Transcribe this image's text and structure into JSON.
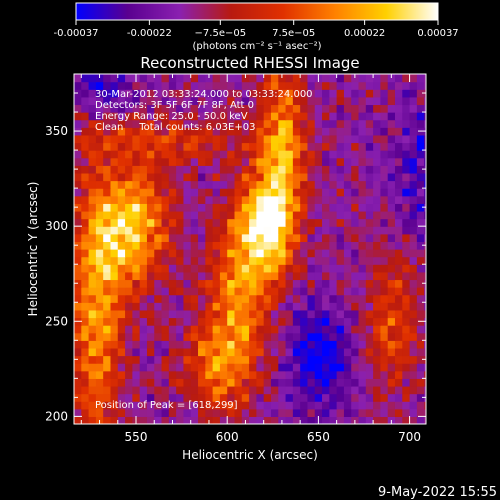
{
  "chart_data": {
    "type": "heatmap",
    "title": "Reconstructed RHESSI Image",
    "xlabel": "Heliocentric X (arcsec)",
    "ylabel": "Heliocentric Y (arcsec)",
    "xlim": [
      516,
      709
    ],
    "ylim": [
      196,
      380
    ],
    "x_ticks": [
      550,
      600,
      650,
      700
    ],
    "y_ticks": [
      200,
      250,
      300,
      350
    ],
    "colorbar": {
      "tick_labels": [
        "-0.00037",
        "-0.00022",
        "−7.5e−05",
        "7.5e−05",
        "0.00022",
        "0.00037"
      ],
      "tick_values": [
        -0.00037,
        -0.00022,
        -7.5e-05,
        7.5e-05,
        0.00022,
        0.00037
      ],
      "range": [
        -0.00037,
        0.00037
      ],
      "units": "(photons cm⁻² s⁻¹ asec⁻²)",
      "palette": [
        "#0000ff",
        "#5a0090",
        "#8a20b0",
        "#b81a10",
        "#e03000",
        "#ff8000",
        "#ffd000",
        "#ffffff"
      ]
    },
    "annotations": [
      "30-Mar-2012 03:33:24.000 to 03:33:24.000",
      "Detectors: 3F 5F 6F 7F 8F, Att 0",
      "Energy Range: 25.0 - 50.0 keV",
      "Clean     Total counts: 6.03E+03"
    ],
    "peak_label": "Position of Peak = [618,299]",
    "peak": [
      618,
      299
    ],
    "footer": "9-May-2022 15:55"
  }
}
